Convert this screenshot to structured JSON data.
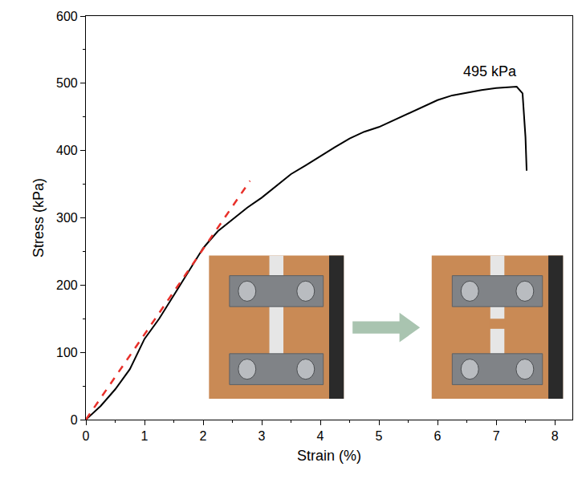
{
  "chart_data": {
    "type": "line",
    "x_label": "Strain (%)",
    "y_label": "Stress (kPa)",
    "xlim": [
      0,
      8.3
    ],
    "xticks": [
      0,
      1,
      2,
      3,
      4,
      5,
      6,
      7,
      8
    ],
    "ylim": [
      0,
      600
    ],
    "yticks": [
      0,
      100,
      200,
      300,
      400,
      500,
      600
    ],
    "grid": false,
    "series": [
      {
        "color": "#000000",
        "line_style": "solid",
        "x": [
          0,
          0.25,
          0.5,
          0.75,
          1.0,
          1.25,
          1.5,
          1.75,
          2.0,
          2.25,
          2.5,
          2.75,
          3.0,
          3.25,
          3.5,
          3.75,
          4.0,
          4.25,
          4.5,
          4.75,
          5.0,
          5.25,
          5.5,
          5.75,
          6.0,
          6.25,
          6.5,
          6.75,
          7.0,
          7.2,
          7.35,
          7.45,
          7.5,
          7.52
        ],
        "values": [
          0,
          20,
          45,
          75,
          120,
          150,
          185,
          220,
          255,
          280,
          298,
          315,
          330,
          347,
          365,
          378,
          392,
          405,
          418,
          428,
          435,
          445,
          455,
          465,
          475,
          482,
          486,
          490,
          493,
          494,
          495,
          485,
          420,
          370
        ]
      },
      {
        "color": "#e8302a",
        "line_style": "dash",
        "x": [
          0,
          2.8
        ],
        "values": [
          0,
          355
        ]
      }
    ],
    "annotations": [
      {
        "text": "495 kPa",
        "x": 6.9,
        "y": 518
      }
    ]
  }
}
